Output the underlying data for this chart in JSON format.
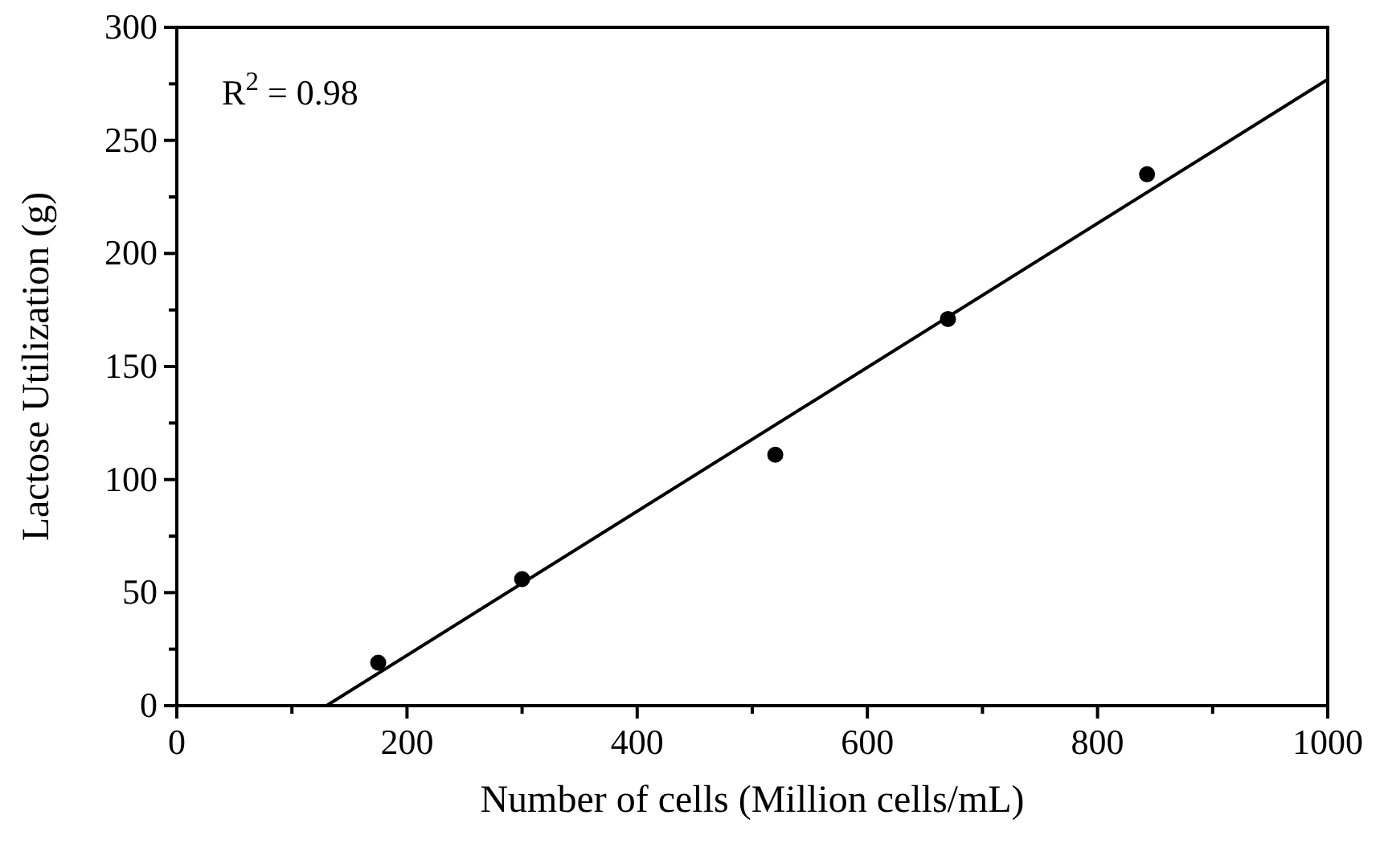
{
  "chart_data": {
    "type": "scatter",
    "xlabel": "Number of cells (Million cells/mL)",
    "ylabel": "Lactose Utilization (g)",
    "annotations": [
      "R$^{2}$ = 0.98"
    ],
    "xlim": [
      0,
      1000
    ],
    "ylim": [
      0,
      300
    ],
    "xticks": [
      0,
      {
        "value": 100,
        "label": null
      },
      200,
      {
        "value": 300,
        "label": null
      },
      400,
      {
        "value": 500,
        "label": null
      },
      600,
      {
        "value": 700,
        "label": null
      },
      800,
      {
        "value": 900,
        "label": null
      },
      1000
    ],
    "yticks": [
      0,
      {
        "value": 25,
        "label": null
      },
      50,
      {
        "value": 75,
        "label": null
      },
      100,
      {
        "value": 125,
        "label": null
      },
      150,
      {
        "value": 175,
        "label": null
      },
      200,
      {
        "value": 225,
        "label": null
      },
      250,
      {
        "value": 275,
        "label": null
      },
      300
    ],
    "grid": false,
    "series": [
      {
        "marker": "circle",
        "color": "#000000",
        "x": [
          175,
          300,
          520,
          670,
          843
        ],
        "values": [
          19,
          56,
          111,
          171,
          235
        ]
      },
      {
        "type": "line",
        "color": "#000000",
        "x": [
          130,
          1000
        ],
        "values": [
          0,
          277
        ]
      }
    ]
  }
}
